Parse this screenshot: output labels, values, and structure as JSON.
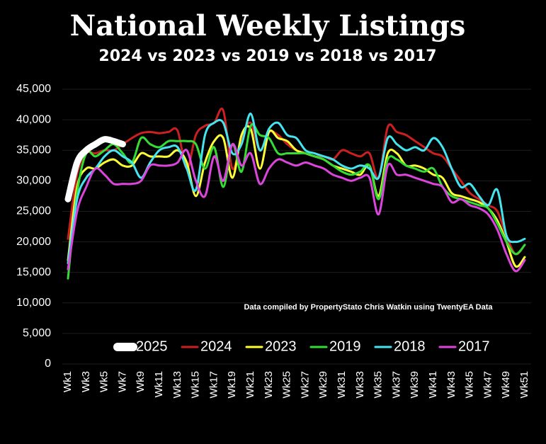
{
  "chart_data": {
    "type": "line",
    "title": "National Weekly Listings",
    "subtitle": "2024 vs 2023 vs 2019 vs 2018 vs 2017",
    "annotation": "Data compiled by PropertyStato Chris Watkin using TwentyEA Data",
    "categories": [
      "Wk1",
      null,
      "Wk3",
      null,
      "Wk5",
      null,
      "Wk7",
      null,
      "Wk9",
      null,
      "Wk11",
      null,
      "Wk13",
      null,
      "Wk15",
      null,
      "Wk17",
      null,
      "Wk19",
      null,
      "Wk21",
      null,
      "Wk23",
      null,
      "Wk25",
      null,
      "Wk27",
      null,
      "Wk29",
      null,
      "Wk31",
      null,
      "Wk33",
      null,
      "Wk35",
      null,
      "Wk37",
      null,
      "Wk39",
      null,
      "Wk41",
      null,
      "Wk43",
      null,
      "Wk45",
      null,
      "Wk47",
      null,
      "Wk49",
      null,
      "Wk51"
    ],
    "ylim": [
      0,
      45000
    ],
    "yticks": [
      0,
      {
        "value": 5000,
        "label": "5,000"
      },
      {
        "value": 10000,
        "label": "10,000"
      },
      {
        "value": 15000,
        "label": "15,000"
      },
      {
        "value": 20000,
        "label": "20,000"
      },
      {
        "value": 25000,
        "label": "25,000"
      },
      {
        "value": 30000,
        "label": "30,000"
      },
      {
        "value": 35000,
        "label": "35,000"
      },
      {
        "value": 40000,
        "label": "40,000"
      },
      {
        "value": 45000,
        "label": "45,000"
      }
    ],
    "grid": true,
    "legend": "bottom",
    "series": [
      {
        "name": "2025",
        "color": "#ffffff",
        "values": [
          27000,
          33000,
          35000,
          36000,
          36800,
          36500,
          36000,
          null,
          null,
          null,
          null,
          null,
          null,
          null,
          null,
          null,
          null,
          null,
          null,
          null,
          null,
          null,
          null,
          null,
          null,
          null,
          null,
          null,
          null,
          null,
          null,
          null,
          null,
          null,
          null,
          null,
          null,
          null,
          null,
          null,
          null,
          null,
          null,
          null,
          null,
          null,
          null,
          null,
          null,
          null,
          null
        ]
      },
      {
        "name": "2024",
        "color": "#cc1f1f",
        "values": [
          20500,
          31000,
          34500,
          34500,
          35000,
          35000,
          36000,
          37000,
          37800,
          38000,
          37800,
          38000,
          38200,
          32000,
          37500,
          39000,
          39500,
          41500,
          32000,
          37000,
          39500,
          35000,
          38000,
          37500,
          36000,
          35000,
          34500,
          34000,
          34000,
          33500,
          35000,
          34500,
          34000,
          34500,
          30500,
          38800,
          38000,
          37500,
          36500,
          35500,
          34500,
          34000,
          32000,
          30000,
          28000,
          27000,
          26000,
          25000,
          21000,
          18000,
          19500
        ]
      },
      {
        "name": "2023",
        "color": "#ffff33",
        "values": [
          17000,
          29000,
          32000,
          32000,
          33000,
          33500,
          32500,
          32500,
          34500,
          34000,
          34000,
          34000,
          35000,
          33000,
          27500,
          33000,
          36500,
          37000,
          30500,
          37500,
          38500,
          32000,
          38000,
          37000,
          36500,
          35000,
          34500,
          34000,
          33500,
          32500,
          32000,
          31500,
          31000,
          32500,
          27500,
          34500,
          34500,
          32500,
          32500,
          32000,
          31000,
          30500,
          28000,
          27500,
          27000,
          26500,
          25500,
          23500,
          20000,
          16000,
          17500
        ]
      },
      {
        "name": "2019",
        "color": "#33dd33",
        "values": [
          14000,
          28000,
          34500,
          34000,
          35000,
          36000,
          34500,
          33000,
          37000,
          36000,
          35500,
          36500,
          36500,
          36500,
          36000,
          32000,
          35500,
          29000,
          36000,
          31500,
          39000,
          37500,
          37000,
          34500,
          34500,
          34500,
          34500,
          34000,
          33500,
          32500,
          31500,
          31000,
          31500,
          32500,
          27000,
          33500,
          33500,
          32500,
          32000,
          31500,
          32000,
          29000,
          27500,
          27000,
          26500,
          26000,
          25500,
          23000,
          20000,
          18000,
          19500
        ]
      },
      {
        "name": "2018",
        "color": "#44e5f0",
        "values": [
          16500,
          27000,
          30500,
          32000,
          34000,
          35000,
          34000,
          33000,
          30500,
          33000,
          35000,
          35500,
          35500,
          32000,
          28500,
          37500,
          39500,
          39500,
          34500,
          36000,
          41000,
          35000,
          38500,
          39500,
          37500,
          37000,
          35000,
          34500,
          34000,
          33500,
          32500,
          32000,
          32500,
          32000,
          30500,
          37000,
          36000,
          35000,
          35500,
          35000,
          37000,
          35500,
          32000,
          29000,
          29500,
          27500,
          26000,
          28500,
          21000,
          20000,
          20500
        ]
      },
      {
        "name": "2017",
        "color": "#dd44dd",
        "values": [
          15500,
          25000,
          29000,
          32000,
          31000,
          29500,
          29500,
          29500,
          30000,
          32500,
          32500,
          32500,
          33000,
          35000,
          30000,
          27500,
          34000,
          30000,
          36000,
          32500,
          34500,
          29500,
          32000,
          33500,
          33000,
          32500,
          33000,
          32500,
          32000,
          31000,
          30500,
          30000,
          30500,
          30500,
          24500,
          32500,
          31000,
          31000,
          30500,
          30000,
          29500,
          29000,
          26500,
          27000,
          26000,
          25500,
          24500,
          22000,
          18000,
          15200,
          17000
        ]
      }
    ]
  }
}
